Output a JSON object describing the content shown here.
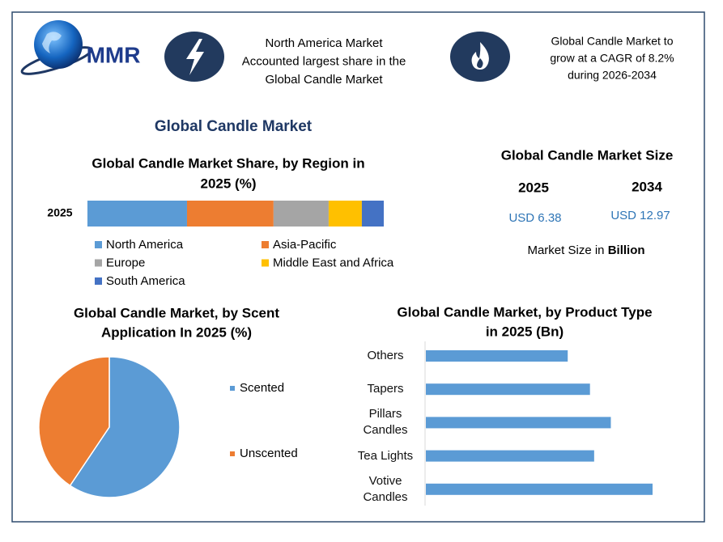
{
  "header": {
    "logo": "MMR",
    "highlights": [
      {
        "lines": [
          "North America Market",
          "Accounted largest share in the",
          "Global Candle Market"
        ]
      },
      {
        "lines": [
          "Global Candle Market to",
          "grow at a CAGR of 8.2%",
          "during 2026-2034"
        ]
      }
    ]
  },
  "title": "Global Candle Market",
  "market_size": {
    "title": "Global Candle Market Size",
    "years": [
      "2025",
      "2034"
    ],
    "values": [
      "USD 6.38",
      "USD 12.97"
    ],
    "note": "Market Size in",
    "note_unit": "Billion"
  },
  "chart_data": [
    {
      "type": "stacked-bar",
      "title": [
        "Global Candle Market Share, by Region in",
        "2025 (%)"
      ],
      "categories": [
        "2025"
      ],
      "series": [
        {
          "name": "North America",
          "color": "#5b9bd5",
          "values": [
            33.6
          ]
        },
        {
          "name": "Asia-Pacific",
          "color": "#ed7d31",
          "values": [
            29.2
          ]
        },
        {
          "name": "Europe",
          "color": "#a5a5a5",
          "values": [
            18.6
          ]
        },
        {
          "name": "Middle East and Africa",
          "color": "#ffc000",
          "values": [
            11.2
          ]
        },
        {
          "name": "South America",
          "color": "#4472c4",
          "values": [
            7.4
          ]
        }
      ]
    },
    {
      "type": "pie",
      "title": [
        "Global Candle Market, by Scent",
        "Application In 2025 (%)"
      ],
      "categories": [
        "Scented",
        "Unscented"
      ],
      "values": [
        59.4,
        40.6
      ],
      "colors": [
        "#5b9bd5",
        "#ed7d31"
      ]
    },
    {
      "type": "hbar",
      "title": [
        "Global Candle Market, by Product Type",
        "in 2025 (Bn)"
      ],
      "categories": [
        "Others",
        "Tapers",
        "Pillars Candles",
        "Tea Lights",
        "Votive Candles"
      ],
      "values": [
        1.02,
        1.18,
        1.33,
        1.21,
        1.63
      ],
      "color": "#5b9bd5"
    }
  ]
}
